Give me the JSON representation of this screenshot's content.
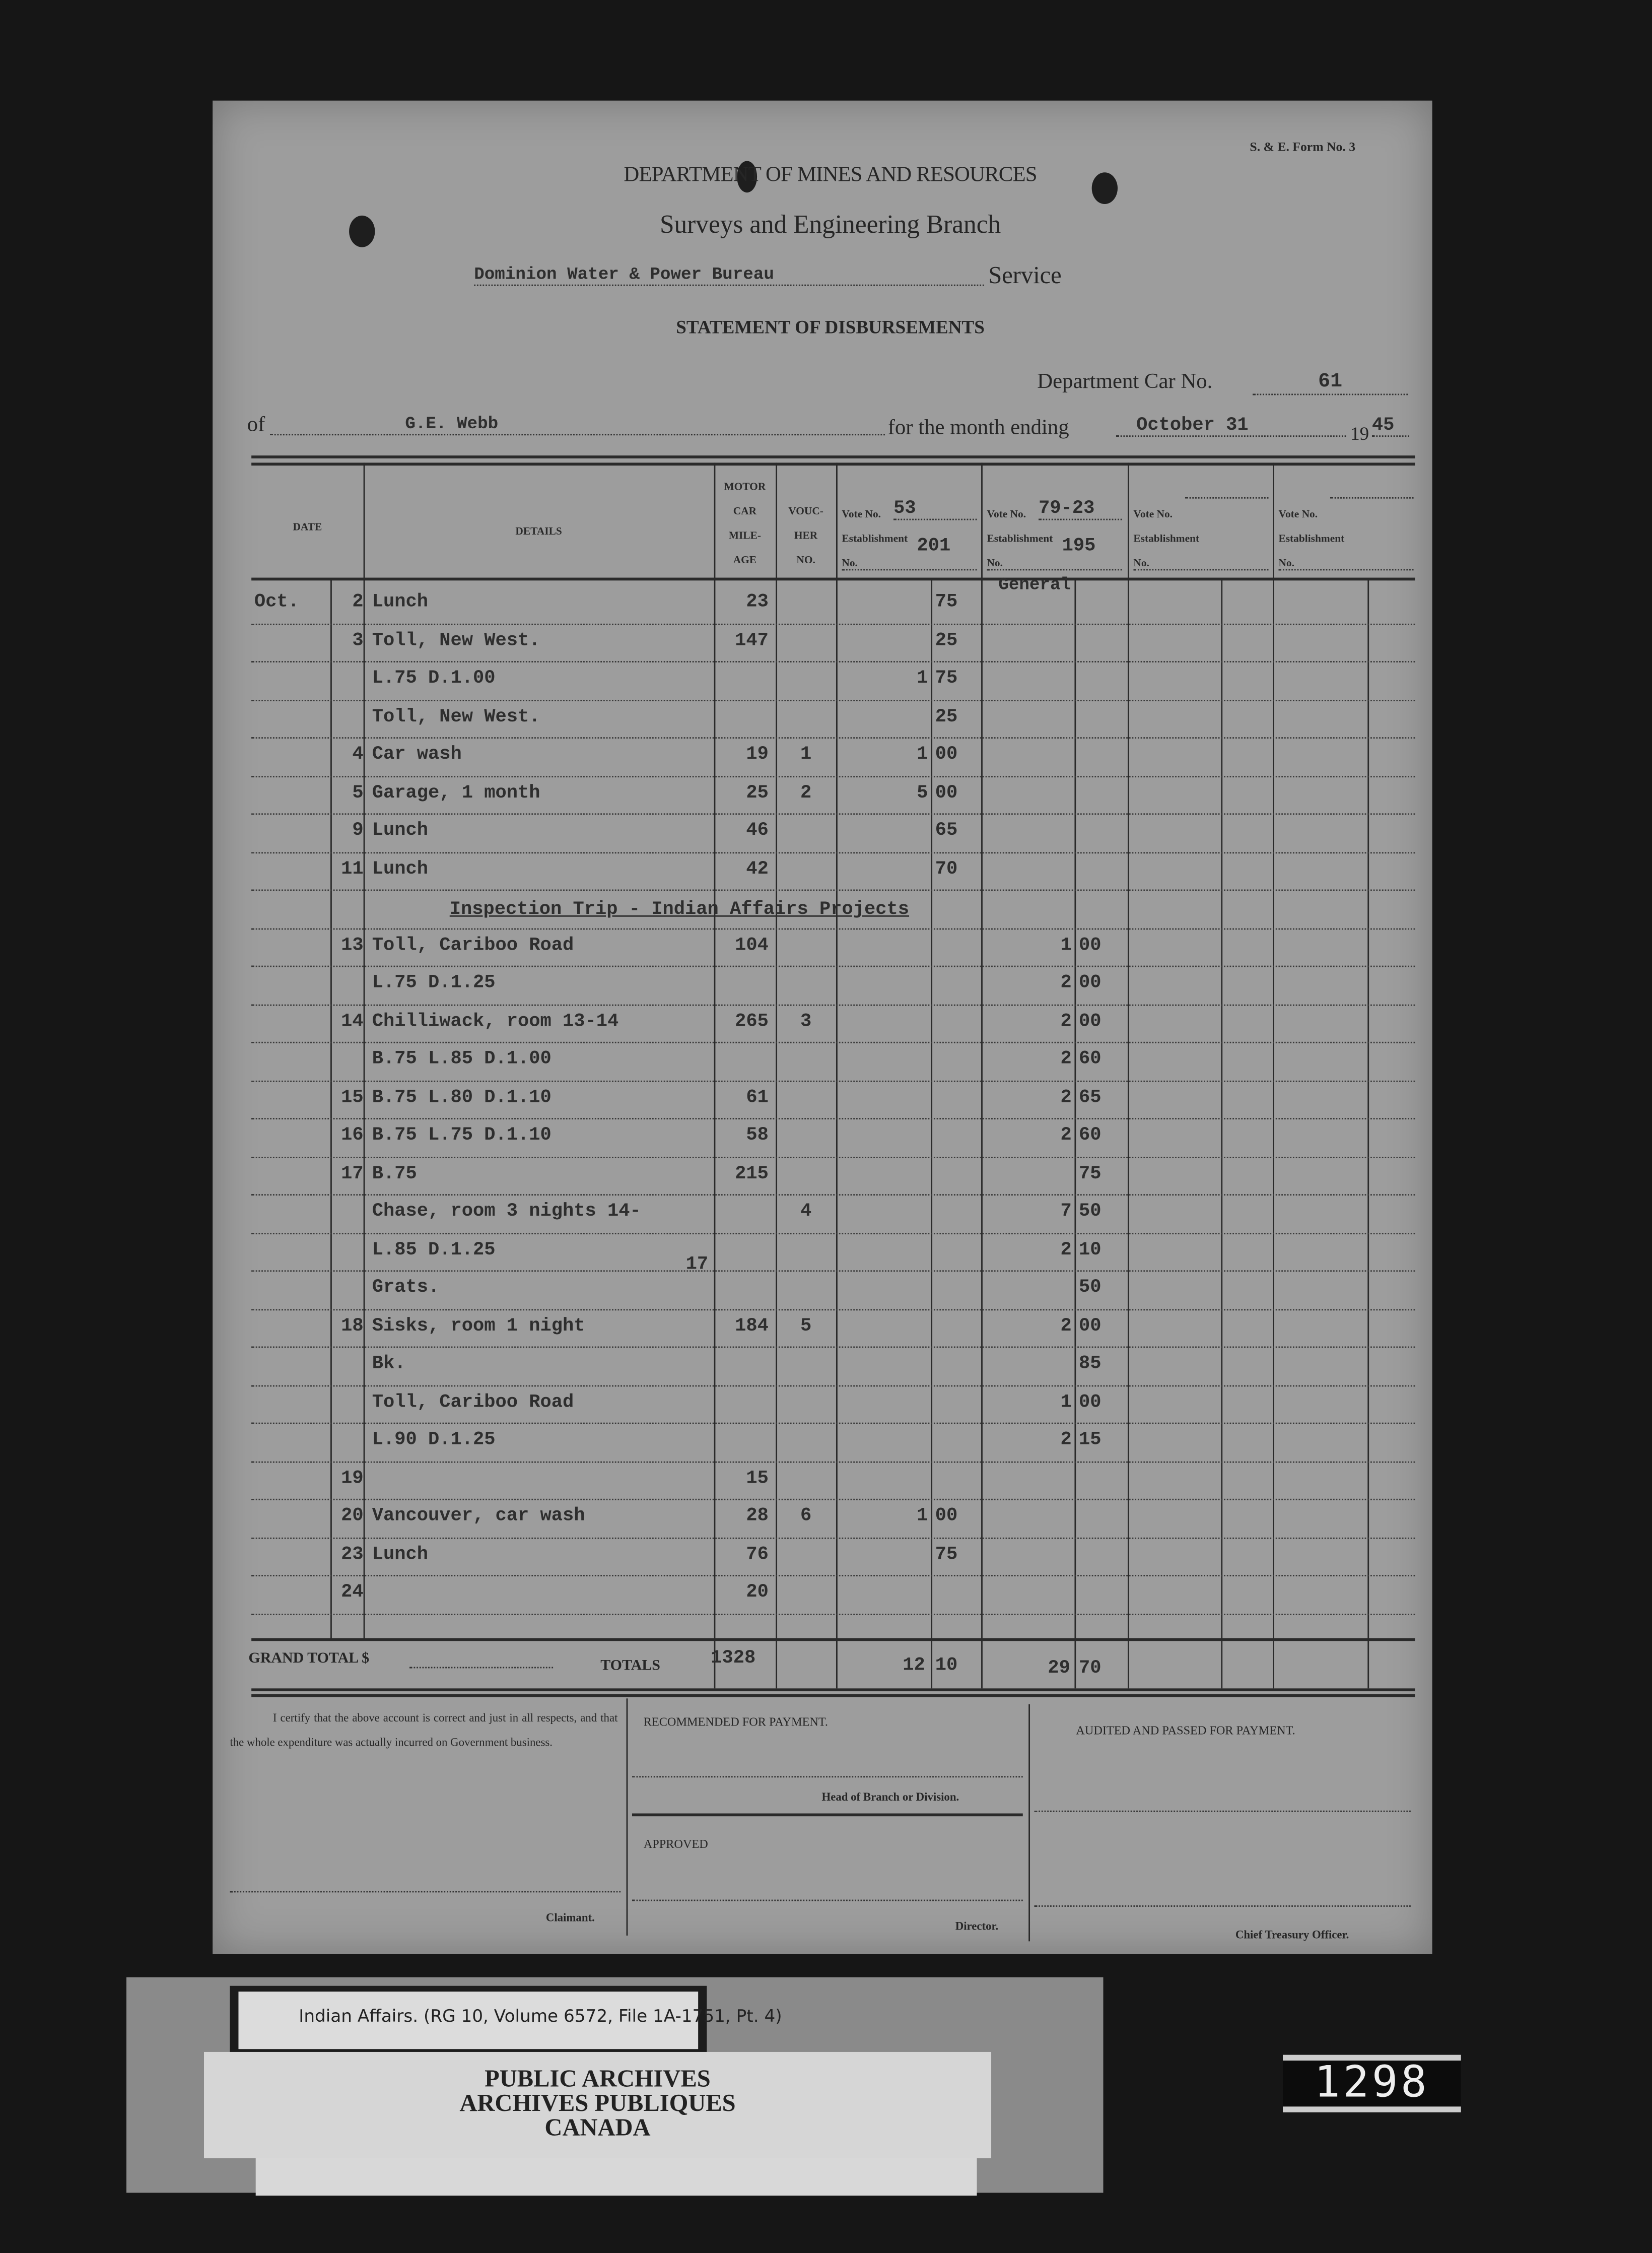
{
  "form": {
    "form_number": "S. & E. Form No. 3",
    "department": "DEPARTMENT OF MINES AND RESOURCES",
    "branch": "Surveys and Engineering Branch",
    "service_value": "Dominion Water & Power Bureau",
    "service_label": "Service",
    "title": "STATEMENT OF DISBURSEMENTS",
    "car_label": "Department Car No.",
    "car_value": "61",
    "of_label": "of",
    "of_value": "G.E. Webb",
    "month_label": "for the month ending",
    "month_value": "October 31",
    "year_prefix": "19",
    "year_value": "45"
  },
  "table": {
    "headers": {
      "date": "DATE",
      "details": "DETAILS",
      "mileage": [
        "MOTOR",
        "CAR",
        "MILE-",
        "AGE"
      ],
      "voucher": [
        "VOUC-",
        "HER",
        "NO."
      ],
      "vote_label": "Vote No.",
      "establishment_label": "Establishment",
      "no_label": "No."
    },
    "votes": [
      {
        "vote_no": "53",
        "establishment": "201",
        "extra": ""
      },
      {
        "vote_no": "79-23",
        "establishment": "195",
        "extra": "General"
      },
      {
        "vote_no": "",
        "establishment": "",
        "extra": ""
      },
      {
        "vote_no": "",
        "establishment": "",
        "extra": ""
      }
    ],
    "rows": [
      {
        "month": "Oct.",
        "day": "2",
        "details": "Lunch",
        "mileage": "23",
        "voucher": "",
        "v1d": "",
        "v1c": "75",
        "v2d": "",
        "v2c": ""
      },
      {
        "month": "",
        "day": "3",
        "details": "Toll, New West.",
        "mileage": "147",
        "voucher": "",
        "v1d": "",
        "v1c": "25",
        "v2d": "",
        "v2c": ""
      },
      {
        "month": "",
        "day": "",
        "details": "L.75 D.1.00",
        "mileage": "",
        "voucher": "",
        "v1d": "1",
        "v1c": "75",
        "v2d": "",
        "v2c": ""
      },
      {
        "month": "",
        "day": "",
        "details": "Toll, New West.",
        "mileage": "",
        "voucher": "",
        "v1d": "",
        "v1c": "25",
        "v2d": "",
        "v2c": ""
      },
      {
        "month": "",
        "day": "4",
        "details": "Car wash",
        "mileage": "19",
        "voucher": "1",
        "v1d": "1",
        "v1c": "00",
        "v2d": "",
        "v2c": ""
      },
      {
        "month": "",
        "day": "5",
        "details": "Garage, 1 month",
        "mileage": "25",
        "voucher": "2",
        "v1d": "5",
        "v1c": "00",
        "v2d": "",
        "v2c": ""
      },
      {
        "month": "",
        "day": "9",
        "details": "Lunch",
        "mileage": "46",
        "voucher": "",
        "v1d": "",
        "v1c": "65",
        "v2d": "",
        "v2c": ""
      },
      {
        "month": "",
        "day": "11",
        "details": "Lunch",
        "mileage": "42",
        "voucher": "",
        "v1d": "",
        "v1c": "70",
        "v2d": "",
        "v2c": ""
      },
      {
        "heading": "Inspection Trip - Indian Affairs Projects"
      },
      {
        "month": "",
        "day": "13",
        "details": "Toll, Cariboo Road",
        "mileage": "104",
        "voucher": "",
        "v1d": "",
        "v1c": "",
        "v2d": "1",
        "v2c": "00"
      },
      {
        "month": "",
        "day": "",
        "details": "L.75 D.1.25",
        "mileage": "",
        "voucher": "",
        "v1d": "",
        "v1c": "",
        "v2d": "2",
        "v2c": "00"
      },
      {
        "month": "",
        "day": "14",
        "details": "Chilliwack, room 13-14",
        "mileage": "265",
        "voucher": "3",
        "v1d": "",
        "v1c": "",
        "v2d": "2",
        "v2c": "00"
      },
      {
        "month": "",
        "day": "",
        "details": "B.75 L.85 D.1.00",
        "mileage": "",
        "voucher": "",
        "v1d": "",
        "v1c": "",
        "v2d": "2",
        "v2c": "60"
      },
      {
        "month": "",
        "day": "15",
        "details": "B.75 L.80 D.1.10",
        "mileage": "61",
        "voucher": "",
        "v1d": "",
        "v1c": "",
        "v2d": "2",
        "v2c": "65"
      },
      {
        "month": "",
        "day": "16",
        "details": "B.75 L.75 D.1.10",
        "mileage": "58",
        "voucher": "",
        "v1d": "",
        "v1c": "",
        "v2d": "2",
        "v2c": "60"
      },
      {
        "month": "",
        "day": "17",
        "details": "B.75",
        "mileage": "215",
        "voucher": "",
        "v1d": "",
        "v1c": "",
        "v2d": "",
        "v2c": "75"
      },
      {
        "month": "",
        "day": "",
        "details": "Chase, room 3 nights 14-",
        "mileage": "",
        "voucher": "4",
        "v1d": "",
        "v1c": "",
        "v2d": "7",
        "v2c": "50"
      },
      {
        "month": "",
        "day": "",
        "details": "L.85 D.1.25",
        "details_right": "17",
        "mileage": "",
        "voucher": "",
        "v1d": "",
        "v1c": "",
        "v2d": "2",
        "v2c": "10"
      },
      {
        "month": "",
        "day": "",
        "details": "Grats.",
        "mileage": "",
        "voucher": "",
        "v1d": "",
        "v1c": "",
        "v2d": "",
        "v2c": "50"
      },
      {
        "month": "",
        "day": "18",
        "details": "Sisks, room 1 night",
        "mileage": "184",
        "voucher": "5",
        "v1d": "",
        "v1c": "",
        "v2d": "2",
        "v2c": "00"
      },
      {
        "month": "",
        "day": "",
        "details": "Bk.",
        "mileage": "",
        "voucher": "",
        "v1d": "",
        "v1c": "",
        "v2d": "",
        "v2c": "85"
      },
      {
        "month": "",
        "day": "",
        "details": "Toll, Cariboo Road",
        "mileage": "",
        "voucher": "",
        "v1d": "",
        "v1c": "",
        "v2d": "1",
        "v2c": "00"
      },
      {
        "month": "",
        "day": "",
        "details": "L.90 D.1.25",
        "mileage": "",
        "voucher": "",
        "v1d": "",
        "v1c": "",
        "v2d": "2",
        "v2c": "15"
      },
      {
        "month": "",
        "day": "19",
        "details": "",
        "mileage": "15",
        "voucher": "",
        "v1d": "",
        "v1c": "",
        "v2d": "",
        "v2c": ""
      },
      {
        "month": "",
        "day": "20",
        "details": "Vancouver, car wash",
        "mileage": "28",
        "voucher": "6",
        "v1d": "1",
        "v1c": "00",
        "v2d": "",
        "v2c": ""
      },
      {
        "month": "",
        "day": "23",
        "details": "Lunch",
        "mileage": "76",
        "voucher": "",
        "v1d": "",
        "v1c": "75",
        "v2d": "",
        "v2c": ""
      },
      {
        "month": "",
        "day": "24",
        "details": "",
        "mileage": "20",
        "voucher": "",
        "v1d": "",
        "v1c": "",
        "v2d": "",
        "v2c": ""
      }
    ],
    "totals": {
      "grand_total_label": "GRAND TOTAL $",
      "totals_label": "TOTALS",
      "mileage": "1328",
      "v1d": "12",
      "v1c": "10",
      "v2d": "29",
      "v2c": "70"
    }
  },
  "footer": {
    "certification": "I certify that the above account is correct and just in all respects, and that the whole expenditure was actually incurred on Government business.",
    "claimant": "Claimant.",
    "recommended": "RECOMMENDED FOR PAYMENT.",
    "head_of_branch": "Head of Branch or Division.",
    "approved": "APPROVED",
    "director": "Director.",
    "audited": "AUDITED AND PASSED FOR PAYMENT.",
    "chief_treasury": "Chief Treasury Officer."
  },
  "archive": {
    "reference": "Indian Affairs. (RG 10, Volume 6572, File 1A-1751, Pt. 4)",
    "stamp_line1": "PUBLIC ARCHIVES",
    "stamp_line2": "ARCHIVES PUBLIQUES",
    "stamp_line3": "CANADA",
    "frame_counter": "1298"
  }
}
